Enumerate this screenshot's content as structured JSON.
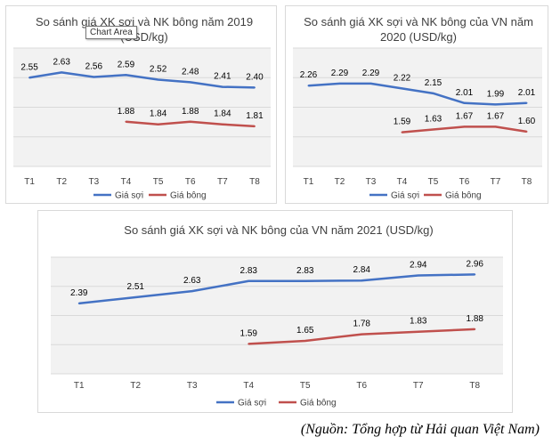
{
  "tooltip": "Chart Area",
  "source": "(Nguồn: Tổng hợp từ Hải quan Việt Nam)",
  "colors": {
    "yarn": "#4472C4",
    "cotton": "#C0504D",
    "plot_bg": "#F2F2F2",
    "grid": "#D9D9D9",
    "text": "#404040"
  },
  "chart_data": [
    {
      "type": "line",
      "title": "So sánh giá XK sợi và NK bông năm 2019 (USD/kg)",
      "categories": [
        "T1",
        "T2",
        "T3",
        "T4",
        "T5",
        "T6",
        "T7",
        "T8"
      ],
      "series": [
        {
          "name": "Giá sợi",
          "values": [
            2.55,
            2.63,
            2.56,
            2.59,
            2.52,
            2.48,
            2.41,
            2.4
          ]
        },
        {
          "name": "Giá bông",
          "values": [
            null,
            null,
            null,
            1.88,
            1.84,
            1.88,
            1.84,
            1.81
          ]
        }
      ],
      "ylim": [
        1.2,
        3.0
      ],
      "grid": true,
      "legend": "bottom"
    },
    {
      "type": "line",
      "title": "So sánh giá XK sợi và NK bông của VN năm 2020 (USD/kg)",
      "categories": [
        "T1",
        "T2",
        "T3",
        "T4",
        "T5",
        "T6",
        "T7",
        "T8"
      ],
      "series": [
        {
          "name": "Giá sợi",
          "values": [
            2.26,
            2.29,
            2.29,
            2.22,
            2.15,
            2.01,
            1.99,
            2.01
          ]
        },
        {
          "name": "Giá bông",
          "values": [
            null,
            null,
            null,
            1.59,
            1.63,
            1.67,
            1.67,
            1.6
          ]
        }
      ],
      "ylim": [
        1.1,
        2.8
      ],
      "grid": true,
      "legend": "bottom"
    },
    {
      "type": "line",
      "title": "So sánh giá XK sợi và NK bông của VN năm 2021 (USD/kg)",
      "categories": [
        "T1",
        "T2",
        "T3",
        "T4",
        "T5",
        "T6",
        "T7",
        "T8"
      ],
      "series": [
        {
          "name": "Giá sợi",
          "values": [
            2.39,
            2.51,
            2.63,
            2.83,
            2.83,
            2.84,
            2.94,
            2.96
          ]
        },
        {
          "name": "Giá bông",
          "values": [
            null,
            null,
            null,
            1.59,
            1.65,
            1.78,
            1.83,
            1.88
          ]
        }
      ],
      "ylim": [
        1.0,
        3.3
      ],
      "grid": true,
      "legend": "bottom"
    }
  ]
}
